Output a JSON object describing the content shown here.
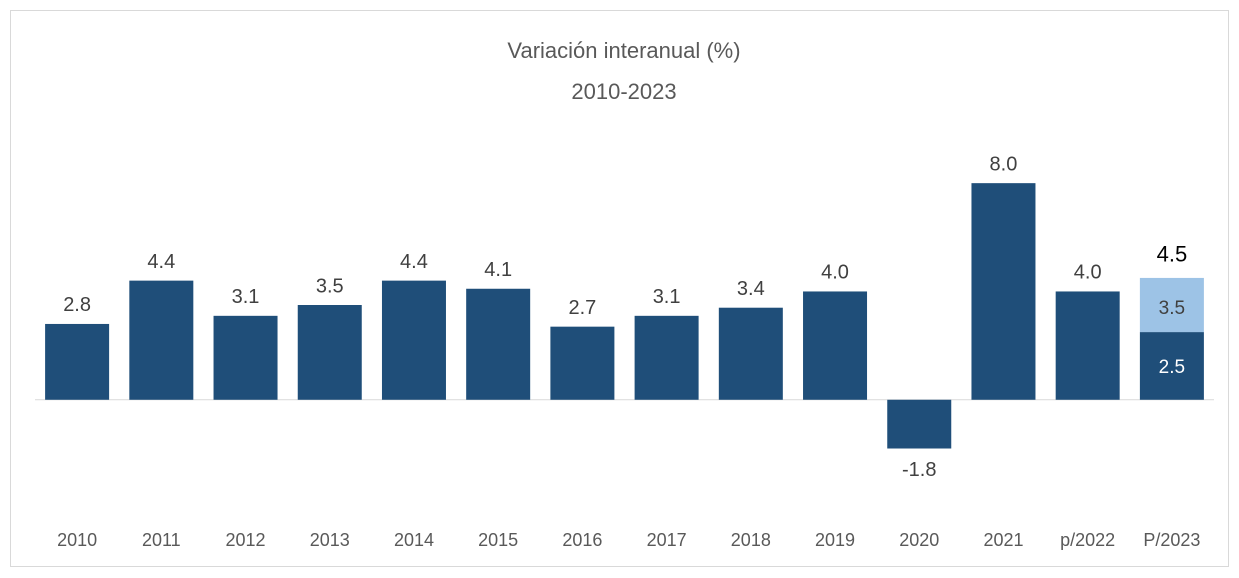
{
  "chart_data": {
    "type": "bar",
    "title": "Variación interanual (%)",
    "subtitle": "2010-2023",
    "categories": [
      "2010",
      "2011",
      "2012",
      "2013",
      "2014",
      "2015",
      "2016",
      "2017",
      "2018",
      "2019",
      "2020",
      "2021",
      "p/2022",
      "P/2023"
    ],
    "values": [
      2.8,
      4.4,
      3.1,
      3.5,
      4.4,
      4.1,
      2.7,
      3.1,
      3.4,
      4.0,
      -1.8,
      8.0,
      4.0,
      null
    ],
    "value_labels": [
      "2.8",
      "4.4",
      "3.1",
      "3.5",
      "4.4",
      "4.1",
      "2.7",
      "3.1",
      "3.4",
      "4.0",
      "-1.8",
      "8.0",
      "4.0",
      null
    ],
    "color": "#1f4e79",
    "forecast": {
      "low": 2.5,
      "central": 3.5,
      "high": 4.5,
      "low_label": "2.5",
      "central_label": "3.5",
      "high_label": "4.5",
      "range_color": "#9dc3e6"
    },
    "ylim": [
      -3,
      10
    ]
  }
}
